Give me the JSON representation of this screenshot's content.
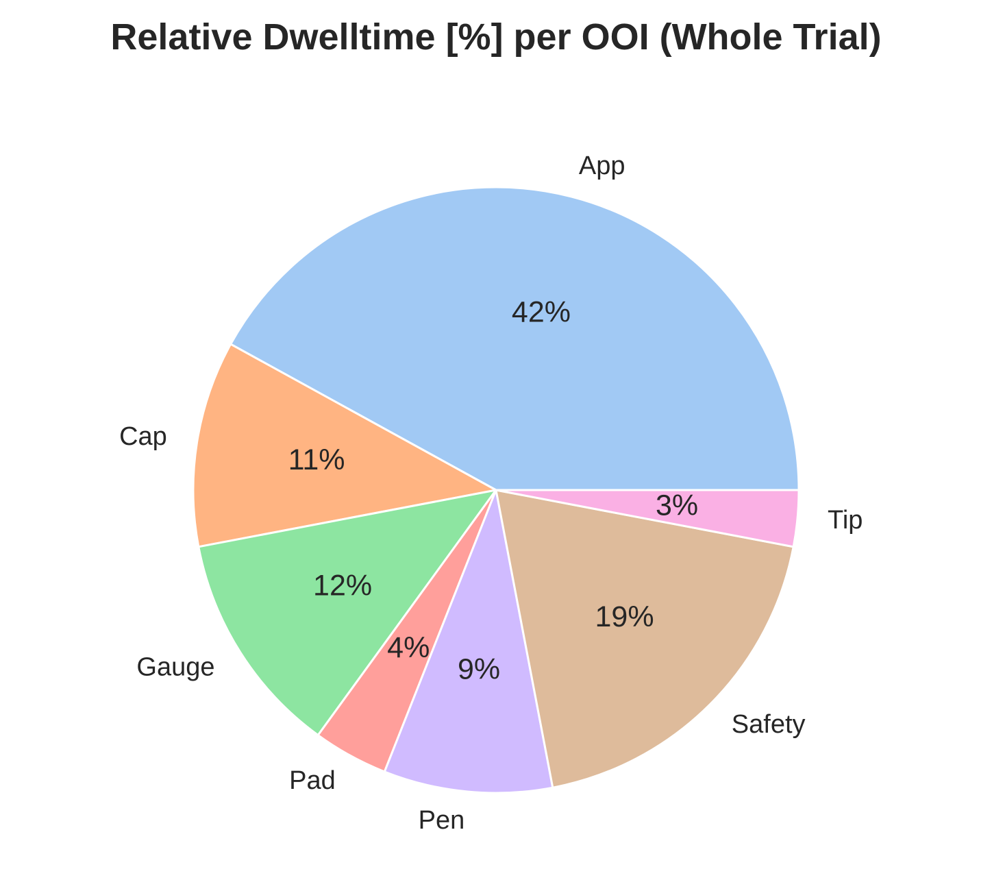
{
  "chart_data": {
    "type": "pie",
    "title": "Relative Dwelltime [%] per OOI (Whole Trial)",
    "slices": [
      {
        "label": "App",
        "value": 42,
        "pct_label": "42%",
        "color": "#a1c9f4"
      },
      {
        "label": "Cap",
        "value": 11,
        "pct_label": "11%",
        "color": "#ffb482"
      },
      {
        "label": "Gauge",
        "value": 12,
        "pct_label": "12%",
        "color": "#8de5a1"
      },
      {
        "label": "Pad",
        "value": 4,
        "pct_label": "4%",
        "color": "#ff9f9b"
      },
      {
        "label": "Pen",
        "value": 9,
        "pct_label": "9%",
        "color": "#d0bbff"
      },
      {
        "label": "Safety",
        "value": 19,
        "pct_label": "19%",
        "color": "#debb9b"
      },
      {
        "label": "Tip",
        "value": 3,
        "pct_label": "3%",
        "color": "#fab0e4"
      }
    ],
    "start_angle_deg": 0,
    "direction": "counterclockwise",
    "wedge_edge_color": "#ffffff"
  }
}
